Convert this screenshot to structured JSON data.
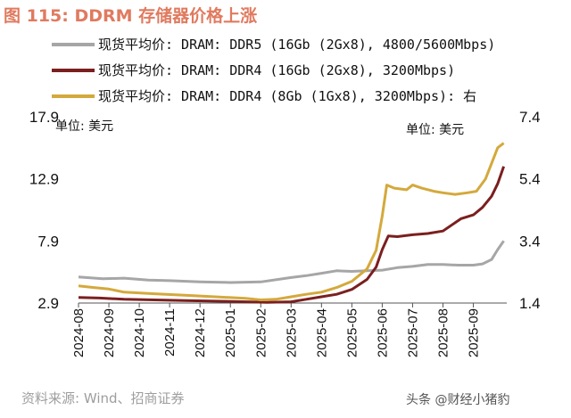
{
  "figure_title": "图 115:  DDRM 存储器价格上涨",
  "title_color": "#e07a5f",
  "source": "资料来源:  Wind、招商证券",
  "watermark": "头条 @财经小猪豹",
  "chart_data": {
    "type": "line",
    "title": "DDRM 存储器价格上涨",
    "left_unit": "单位:  美元",
    "right_unit": "单位:  美元",
    "left_ticks": [
      "17.9",
      "12.9",
      "7.9",
      "2.9"
    ],
    "left_ylim": [
      2.9,
      17.9
    ],
    "right_ticks": [
      "7.4",
      "5.4",
      "3.4",
      "1.4"
    ],
    "right_ylim": [
      1.4,
      7.4
    ],
    "x_labels": [
      "2024-08",
      "2024-09",
      "2024-10",
      "2024-11",
      "2024-12",
      "2025-01",
      "2025-02",
      "2025-03",
      "2025-04",
      "2025-05",
      "2025-06",
      "2025-07",
      "2025-08",
      "2025-09"
    ],
    "x_range": [
      0,
      14.1
    ],
    "series": [
      {
        "name": "现货平均价: DRAM: DDR5 (16Gb (2Gx8), 4800/5600Mbps)",
        "axis": "left",
        "color": "#a6a6a6",
        "points": [
          [
            0,
            5.0
          ],
          [
            0.8,
            4.85
          ],
          [
            1.5,
            4.9
          ],
          [
            2.3,
            4.75
          ],
          [
            3.0,
            4.7
          ],
          [
            4.0,
            4.6
          ],
          [
            5.0,
            4.55
          ],
          [
            6.0,
            4.6
          ],
          [
            7.0,
            4.95
          ],
          [
            7.5,
            5.1
          ],
          [
            8.0,
            5.3
          ],
          [
            8.5,
            5.5
          ],
          [
            9.0,
            5.45
          ],
          [
            9.5,
            5.5
          ],
          [
            10.0,
            5.55
          ],
          [
            10.5,
            5.75
          ],
          [
            11.0,
            5.85
          ],
          [
            11.5,
            6.0
          ],
          [
            12.0,
            6.0
          ],
          [
            12.5,
            5.95
          ],
          [
            13.0,
            5.95
          ],
          [
            13.3,
            6.05
          ],
          [
            13.6,
            6.4
          ],
          [
            13.8,
            7.2
          ],
          [
            14.0,
            7.9
          ]
        ]
      },
      {
        "name": "现货平均价: DRAM: DDR4 (16Gb (2Gx8), 3200Mbps)",
        "axis": "left",
        "color": "#7b1f1f",
        "points": [
          [
            0,
            3.35
          ],
          [
            0.7,
            3.3
          ],
          [
            1.5,
            3.2
          ],
          [
            2.5,
            3.15
          ],
          [
            3.5,
            3.1
          ],
          [
            4.5,
            3.05
          ],
          [
            5.5,
            3.0
          ],
          [
            6.2,
            2.95
          ],
          [
            7.0,
            3.0
          ],
          [
            7.5,
            3.2
          ],
          [
            8.0,
            3.4
          ],
          [
            8.5,
            3.6
          ],
          [
            9.0,
            4.0
          ],
          [
            9.5,
            4.8
          ],
          [
            9.8,
            5.8
          ],
          [
            10.0,
            7.2
          ],
          [
            10.2,
            8.3
          ],
          [
            10.5,
            8.25
          ],
          [
            11.0,
            8.4
          ],
          [
            11.5,
            8.5
          ],
          [
            12.0,
            8.7
          ],
          [
            12.3,
            9.2
          ],
          [
            12.6,
            9.7
          ],
          [
            13.0,
            10.0
          ],
          [
            13.3,
            10.6
          ],
          [
            13.6,
            11.5
          ],
          [
            13.8,
            12.5
          ],
          [
            14.0,
            13.9
          ]
        ]
      },
      {
        "name": "现货平均价: DRAM: DDR4 (8Gb (1Gx8), 3200Mbps): 右",
        "axis": "right",
        "color": "#d4a93c",
        "points": [
          [
            0,
            1.95
          ],
          [
            0.5,
            1.9
          ],
          [
            1.0,
            1.85
          ],
          [
            1.5,
            1.75
          ],
          [
            2.5,
            1.7
          ],
          [
            3.5,
            1.65
          ],
          [
            4.5,
            1.6
          ],
          [
            5.5,
            1.55
          ],
          [
            6.0,
            1.5
          ],
          [
            6.5,
            1.52
          ],
          [
            7.0,
            1.6
          ],
          [
            7.5,
            1.68
          ],
          [
            8.0,
            1.75
          ],
          [
            8.5,
            1.9
          ],
          [
            9.0,
            2.1
          ],
          [
            9.5,
            2.5
          ],
          [
            9.8,
            3.1
          ],
          [
            10.0,
            4.2
          ],
          [
            10.15,
            5.2
          ],
          [
            10.4,
            5.1
          ],
          [
            10.8,
            5.05
          ],
          [
            11.0,
            5.2
          ],
          [
            11.3,
            5.1
          ],
          [
            11.7,
            5.0
          ],
          [
            12.0,
            4.95
          ],
          [
            12.4,
            4.9
          ],
          [
            12.8,
            4.95
          ],
          [
            13.1,
            5.0
          ],
          [
            13.4,
            5.4
          ],
          [
            13.6,
            5.9
          ],
          [
            13.8,
            6.4
          ],
          [
            14.0,
            6.55
          ]
        ]
      }
    ]
  }
}
